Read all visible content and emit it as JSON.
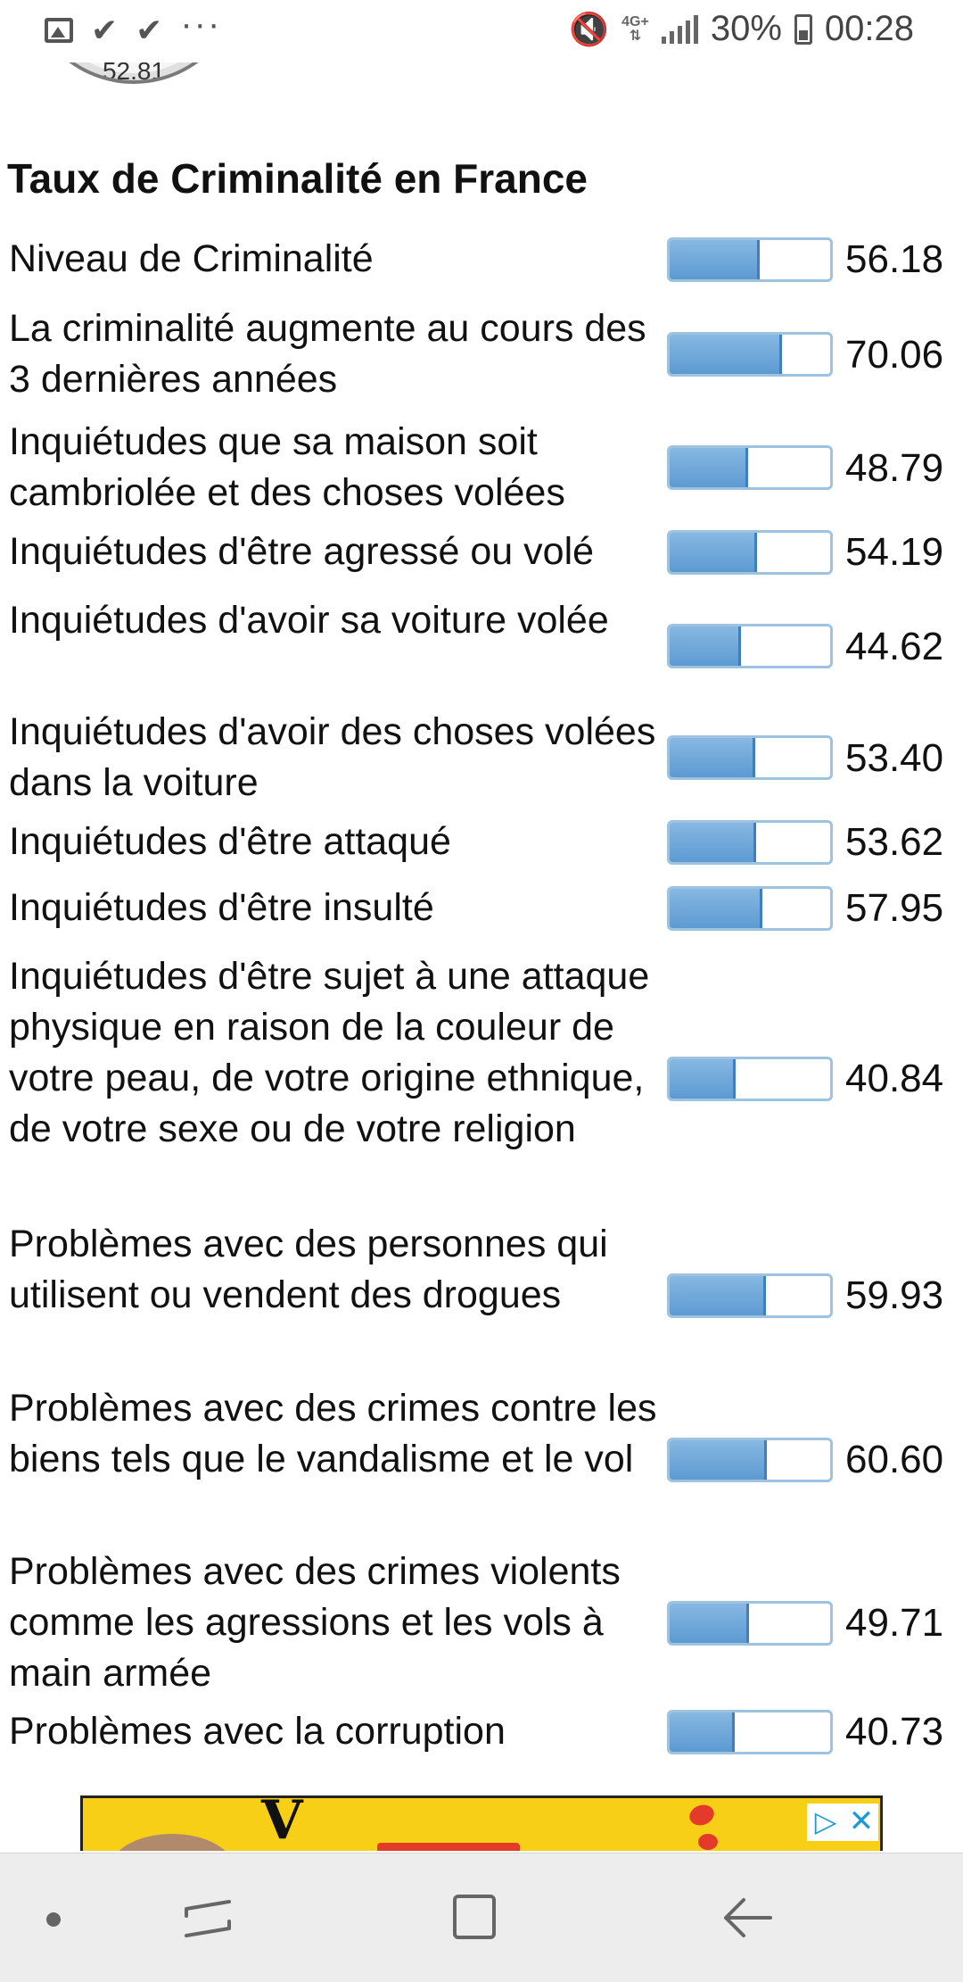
{
  "status_bar": {
    "battery": "30%",
    "time": "00:28",
    "network": "4G+",
    "icons": [
      "image-icon",
      "check-icon",
      "check-icon",
      "more-dots-icon",
      "mute-icon",
      "network-icon",
      "signal-icon",
      "battery-icon"
    ]
  },
  "gauge": {
    "value": "52.81"
  },
  "title": "Taux de Criminalité en France",
  "rows": [
    {
      "label": "Niveau de Criminalité",
      "value": "56.18",
      "fill": 56.18
    },
    {
      "label": "La criminalité augmente au cours des 3 dernières années",
      "value": "70.06",
      "fill": 70.06
    },
    {
      "label": "Inquiétudes que sa maison soit cambriolée et des choses volées",
      "value": "48.79",
      "fill": 48.79
    },
    {
      "label": "Inquiétudes d'être agressé ou volé",
      "value": "54.19",
      "fill": 54.19
    },
    {
      "label": "Inquiétudes d'avoir sa voiture volée",
      "value": "44.62",
      "fill": 44.62
    },
    {
      "label": "Inquiétudes d'avoir des choses volées dans la voiture",
      "value": "53.40",
      "fill": 53.4
    },
    {
      "label": "Inquiétudes d'être attaqué",
      "value": "53.62",
      "fill": 53.62
    },
    {
      "label": "Inquiétudes d'être insulté",
      "value": "57.95",
      "fill": 57.95
    },
    {
      "label": "Inquiétudes d'être sujet à une attaque physique en raison de la couleur de votre peau, de votre origine ethnique, de votre sexe ou de votre religion",
      "value": "40.84",
      "fill": 40.84
    },
    {
      "label": "Problèmes avec des personnes qui utilisent ou vendent des drogues",
      "value": "59.93",
      "fill": 59.93
    },
    {
      "label": "Problèmes avec des crimes contre les biens tels que le vandalisme et le vol",
      "value": "60.60",
      "fill": 60.6
    },
    {
      "label": "Problèmes avec des crimes violents comme les agressions et les vols à main armée",
      "value": "49.71",
      "fill": 49.71
    },
    {
      "label": "Problèmes avec la corruption",
      "value": "40.73",
      "fill": 40.73
    }
  ],
  "colors": {
    "bar_fill": "#5d9ad2",
    "bar_border": "#9fc3df",
    "ad_background": "#f7cf17"
  },
  "navbar": {
    "icons": [
      "dot-icon",
      "recent-apps-icon",
      "home-icon",
      "back-icon"
    ]
  }
}
